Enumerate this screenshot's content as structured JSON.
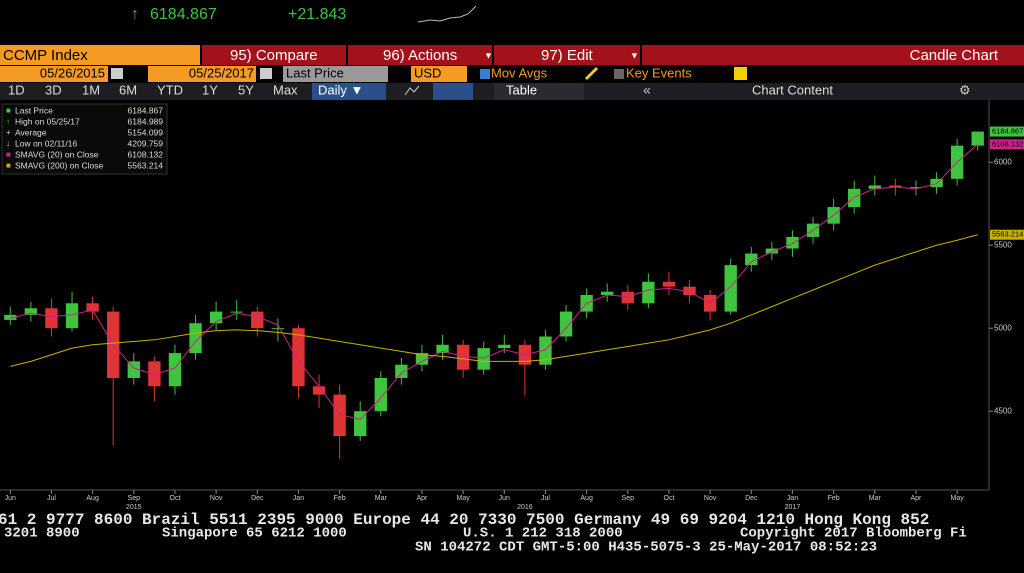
{
  "header": {
    "arrow": "↑",
    "price": "6184.867",
    "change": "+21.843"
  },
  "toolbar": {
    "security": "CCMP Index",
    "compare": "95) Compare",
    "actions": "96) Actions",
    "edit": "97) Edit",
    "chart_type": "Candle Chart",
    "start_date": "05/26/2015",
    "end_date": "05/25/2017",
    "field": "Last Price",
    "currency": "USD",
    "mov_avgs": "Mov Avgs",
    "key_events": "Key Events",
    "periods": [
      "1D",
      "3D",
      "1M",
      "6M",
      "YTD",
      "1Y",
      "5Y",
      "Max"
    ],
    "frequency": "Daily ▼",
    "table": "Table",
    "chart_content": "Chart Content"
  },
  "ticker": [
    "61 2 9777 8600 Brazil 5511 2395 9000 Europe 44 20 7330 7500 Germany 49 69 9204 1210 Hong Kong 852",
    "3201 8900",
    "Singapore 65 6212 1000",
    "U.S. 1 212 318 2000",
    "Copyright 2017 Bloomberg Fi",
    "SN 104272 CDT  GMT-5:00 H435-5075-3 25-May-2017 08:52:23"
  ],
  "chart_data": {
    "type": "candlestick",
    "legend": [
      {
        "label": "Last Price",
        "value": 6184.867
      },
      {
        "label": "High on 05/25/17",
        "value": 6184.989
      },
      {
        "label": "Average",
        "value": 5154.099
      },
      {
        "label": "Low on 02/11/16",
        "value": 4209.759
      },
      {
        "label": "SMAVG (20) on Close",
        "value": 6108.132
      },
      {
        "label": "SMAVG (200) on Close",
        "value": 5563.214
      }
    ],
    "categories": [
      "Jun",
      null,
      "Jul",
      null,
      "Aug",
      null,
      "Sep",
      null,
      "Oct",
      null,
      "Nov",
      null,
      "Dec",
      null,
      "Jan",
      null,
      "Feb",
      null,
      "Mar",
      null,
      "Apr",
      null,
      "May",
      null,
      "Jun",
      null,
      "Jul",
      null,
      "Aug",
      null,
      "Sep",
      null,
      "Oct",
      null,
      "Nov",
      null,
      "Dec",
      null,
      "Jan",
      null,
      "Feb",
      null,
      "Mar",
      null,
      "Apr",
      null,
      "May",
      null
    ],
    "year_labels": [
      "2015",
      "2016",
      "2017"
    ],
    "series": [
      {
        "up_color": "#3ec43e",
        "down_color": "#e03434",
        "open": [
          5050,
          5080,
          5120,
          5000,
          5150,
          5100,
          4700,
          4800,
          4650,
          4850,
          5030,
          5100,
          5100,
          5000,
          5000,
          4650,
          4600,
          4350,
          4500,
          4700,
          4780,
          4850,
          4900,
          4750,
          4880,
          4900,
          4780,
          4950,
          5100,
          5200,
          5220,
          5150,
          5280,
          5250,
          5200,
          5100,
          5380,
          5450,
          5480,
          5550,
          5630,
          5730,
          5840,
          5860,
          5850,
          5850,
          5900,
          6100
        ],
        "high": [
          5130,
          5160,
          5180,
          5220,
          5190,
          5130,
          4850,
          4830,
          4900,
          5080,
          5160,
          5170,
          5130,
          5060,
          5020,
          4720,
          4660,
          4560,
          4740,
          4820,
          4900,
          4960,
          4930,
          4920,
          4960,
          4930,
          4990,
          5140,
          5240,
          5270,
          5260,
          5330,
          5340,
          5290,
          5230,
          5420,
          5490,
          5520,
          5590,
          5670,
          5780,
          5890,
          5920,
          5900,
          5890,
          5940,
          6140,
          6184.989
        ],
        "low": [
          5020,
          5040,
          4950,
          4980,
          5050,
          4292,
          4660,
          4560,
          4600,
          4810,
          4990,
          5050,
          4950,
          4920,
          4580,
          4520,
          4209.759,
          4320,
          4470,
          4660,
          4740,
          4810,
          4700,
          4720,
          4850,
          4594,
          4750,
          4920,
          5060,
          5160,
          5110,
          5120,
          5200,
          5150,
          5046,
          5080,
          5340,
          5410,
          5430,
          5510,
          5590,
          5690,
          5800,
          5800,
          5800,
          5810,
          5860,
          6070
        ],
        "close": [
          5080,
          5120,
          5000,
          5150,
          5100,
          4700,
          4800,
          4650,
          4850,
          5030,
          5100,
          5100,
          5000,
          5000,
          4650,
          4600,
          4350,
          4500,
          4700,
          4780,
          4850,
          4900,
          4750,
          4880,
          4900,
          4780,
          4950,
          5100,
          5200,
          5220,
          5150,
          5280,
          5250,
          5200,
          5100,
          5380,
          5450,
          5480,
          5550,
          5630,
          5730,
          5840,
          5860,
          5850,
          5850,
          5900,
          6100,
          6184.867
        ]
      },
      {
        "color": "#d0208a",
        "values": [
          5060,
          5090,
          5070,
          5080,
          5110,
          4900,
          4760,
          4720,
          4760,
          4920,
          5040,
          5090,
          5070,
          5020,
          4800,
          4650,
          4480,
          4450,
          4580,
          4730,
          4800,
          4860,
          4830,
          4820,
          4870,
          4840,
          4870,
          5000,
          5150,
          5200,
          5190,
          5230,
          5240,
          5220,
          5150,
          5250,
          5400,
          5460,
          5510,
          5590,
          5680,
          5790,
          5840,
          5850,
          5840,
          5870,
          6000,
          6108.132
        ]
      },
      {
        "color": "#c8b000",
        "values": [
          4770,
          4800,
          4840,
          4880,
          4900,
          4910,
          4920,
          4930,
          4950,
          4970,
          4985,
          4990,
          4985,
          4975,
          4960,
          4940,
          4920,
          4900,
          4880,
          4860,
          4840,
          4830,
          4815,
          4800,
          4800,
          4800,
          4810,
          4830,
          4850,
          4870,
          4890,
          4910,
          4930,
          4960,
          4990,
          5030,
          5080,
          5130,
          5180,
          5230,
          5280,
          5330,
          5380,
          5420,
          5460,
          5500,
          5530,
          5563.214
        ]
      }
    ],
    "ylim": [
      4025,
      6375
    ],
    "yticks": [
      4500,
      5000,
      5500,
      6000
    ]
  }
}
